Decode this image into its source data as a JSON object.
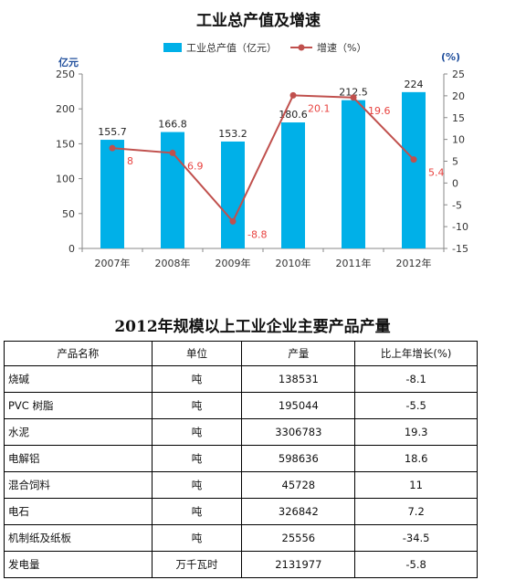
{
  "chart_data": {
    "type": "bar+line",
    "title": "工业总产值及增速",
    "categories": [
      "2007年",
      "2008年",
      "2009年",
      "2010年",
      "2011年",
      "2012年"
    ],
    "series": [
      {
        "name": "工业总产值（亿元）",
        "type": "bar",
        "axis": "left",
        "values": [
          155.7,
          166.8,
          153.2,
          180.6,
          212.5,
          224
        ],
        "labels": [
          "155.7",
          "166.8",
          "153.2",
          "180.6",
          "212.5",
          "224"
        ]
      },
      {
        "name": "增速（%）",
        "type": "line",
        "axis": "right",
        "values": [
          8,
          6.9,
          -8.8,
          20.1,
          19.6,
          5.4
        ],
        "labels": [
          "8",
          "6.9",
          "-8.8",
          "20.1",
          "19.6",
          "5.4"
        ]
      }
    ],
    "left_axis": {
      "label": "亿元",
      "range": [
        0,
        250
      ],
      "ticks": [
        "0",
        "50",
        "100",
        "150",
        "200",
        "250"
      ]
    },
    "right_axis": {
      "label": "(%)",
      "range": [
        -15,
        25
      ],
      "ticks": [
        "-15",
        "-10",
        "-5",
        "0",
        "5",
        "10",
        "15",
        "20",
        "25"
      ]
    },
    "grid": false,
    "legend": "top",
    "colors": {
      "bar": "#00b0e8",
      "line": "#c0504d",
      "line_label": "#e8423f"
    }
  },
  "table": {
    "title": "2012年规模以上工业企业主要产品产量",
    "headers": [
      "产品名称",
      "单位",
      "产量",
      "比上年增长(%)"
    ],
    "rows": [
      {
        "name": "烧碱",
        "unit": "吨",
        "output": "138531",
        "growth": "-8.1"
      },
      {
        "name": "PVC 树脂",
        "unit": "吨",
        "output": "195044",
        "growth": "-5.5"
      },
      {
        "name": "水泥",
        "unit": "吨",
        "output": "3306783",
        "growth": "19.3"
      },
      {
        "name": "电解铝",
        "unit": "吨",
        "output": "598636",
        "growth": "18.6"
      },
      {
        "name": "混合饲料",
        "unit": "吨",
        "output": "45728",
        "growth": "11"
      },
      {
        "name": "电石",
        "unit": "吨",
        "output": "326842",
        "growth": "7.2"
      },
      {
        "name": "机制纸及纸板",
        "unit": "吨",
        "output": "25556",
        "growth": "-34.5"
      },
      {
        "name": "发电量",
        "unit": "万千瓦时",
        "output": "2131977",
        "growth": "-5.8"
      }
    ]
  }
}
